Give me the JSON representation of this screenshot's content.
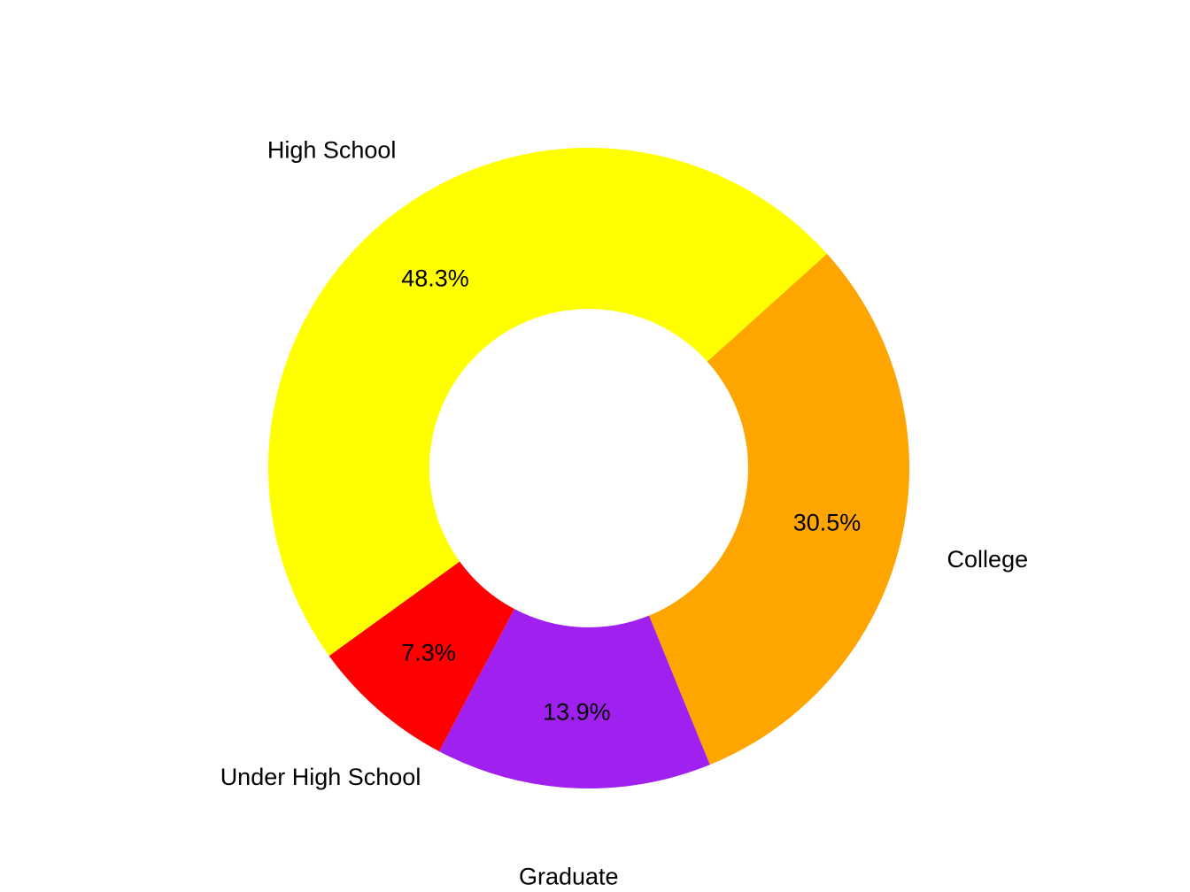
{
  "chart_data": {
    "type": "pie",
    "variant": "donut",
    "title": "",
    "categories": [
      "College",
      "Graduate",
      "Under High School",
      "High School"
    ],
    "values": [
      30.5,
      13.9,
      7.3,
      48.3
    ],
    "value_labels": [
      "30.5%",
      "13.9%",
      "7.3%",
      "48.3%"
    ],
    "colors": [
      "#FFA500",
      "#A020F0",
      "#FF0000",
      "#FFFF00"
    ],
    "legend": "none"
  }
}
